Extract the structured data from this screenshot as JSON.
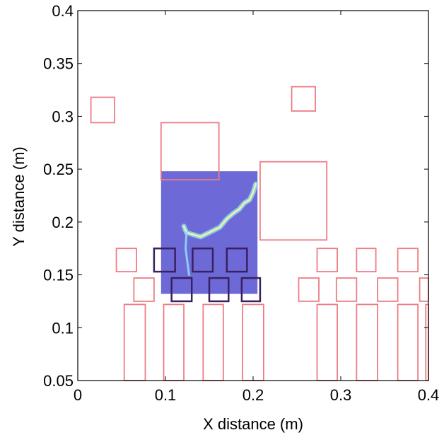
{
  "chart_data": {
    "type": "scatter",
    "title": "",
    "xlabel": "X distance (m)",
    "ylabel": "Y distance (m)",
    "xlim": [
      0,
      0.4
    ],
    "ylim": [
      0.05,
      0.4
    ],
    "xticks": [
      0,
      0.1,
      0.2,
      0.3,
      0.4
    ],
    "yticks": [
      0.05,
      0.1,
      0.15,
      0.2,
      0.25,
      0.3,
      0.35,
      0.4
    ],
    "xtick_labels": [
      "0",
      "0.1",
      "0.2",
      "0.3",
      "0.4"
    ],
    "ytick_labels": [
      "0.05",
      "0.1",
      "0.15",
      "0.2",
      "0.25",
      "0.3",
      "0.35",
      "0.4"
    ],
    "grid": false,
    "colors": {
      "outline": "#ee7c84",
      "dark_outline": "#3a2060",
      "field_fill": "#6d6ad8",
      "crack_core": "#f2f5a0",
      "crack_glow": "#8fd8f0"
    },
    "field_region": {
      "x": [
        0.095,
        0.205
      ],
      "y": [
        0.132,
        0.248
      ]
    },
    "crack_path": [
      [
        0.121,
        0.196
      ],
      [
        0.124,
        0.19
      ],
      [
        0.14,
        0.186
      ],
      [
        0.15,
        0.19
      ],
      [
        0.162,
        0.195
      ],
      [
        0.17,
        0.203
      ],
      [
        0.177,
        0.208
      ],
      [
        0.184,
        0.212
      ],
      [
        0.19,
        0.218
      ],
      [
        0.196,
        0.221
      ],
      [
        0.2,
        0.228
      ],
      [
        0.203,
        0.236
      ]
    ],
    "crack_branch": [
      [
        0.124,
        0.19
      ],
      [
        0.123,
        0.175
      ],
      [
        0.125,
        0.162
      ],
      [
        0.127,
        0.15
      ]
    ],
    "rectangles": [
      {
        "x": [
          0.015,
          0.042
        ],
        "y": [
          0.294,
          0.318
        ],
        "style": "outline"
      },
      {
        "x": [
          0.244,
          0.271
        ],
        "y": [
          0.305,
          0.328
        ],
        "style": "outline"
      },
      {
        "x": [
          0.095,
          0.161
        ],
        "y": [
          0.24,
          0.294
        ],
        "style": "outline"
      },
      {
        "x": [
          0.208,
          0.284
        ],
        "y": [
          0.183,
          0.257
        ],
        "style": "outline"
      },
      {
        "x": [
          0.044,
          0.067
        ],
        "y": [
          0.153,
          0.175
        ],
        "style": "outline"
      },
      {
        "x": [
          0.064,
          0.087
        ],
        "y": [
          0.125,
          0.147
        ],
        "style": "outline"
      },
      {
        "x": [
          0.087,
          0.111
        ],
        "y": [
          0.153,
          0.175
        ],
        "style": "dark"
      },
      {
        "x": [
          0.107,
          0.13
        ],
        "y": [
          0.125,
          0.147
        ],
        "style": "dark"
      },
      {
        "x": [
          0.131,
          0.154
        ],
        "y": [
          0.153,
          0.175
        ],
        "style": "dark"
      },
      {
        "x": [
          0.15,
          0.172
        ],
        "y": [
          0.125,
          0.147
        ],
        "style": "dark"
      },
      {
        "x": [
          0.17,
          0.193
        ],
        "y": [
          0.153,
          0.175
        ],
        "style": "dark"
      },
      {
        "x": [
          0.187,
          0.208
        ],
        "y": [
          0.125,
          0.147
        ],
        "style": "dark"
      },
      {
        "x": [
          0.273,
          0.296
        ],
        "y": [
          0.153,
          0.175
        ],
        "style": "outline"
      },
      {
        "x": [
          0.252,
          0.275
        ],
        "y": [
          0.125,
          0.147
        ],
        "style": "outline"
      },
      {
        "x": [
          0.318,
          0.34
        ],
        "y": [
          0.153,
          0.175
        ],
        "style": "outline"
      },
      {
        "x": [
          0.295,
          0.318
        ],
        "y": [
          0.125,
          0.147
        ],
        "style": "outline"
      },
      {
        "x": [
          0.365,
          0.388
        ],
        "y": [
          0.153,
          0.175
        ],
        "style": "outline"
      },
      {
        "x": [
          0.342,
          0.365
        ],
        "y": [
          0.125,
          0.147
        ],
        "style": "outline"
      },
      {
        "x": [
          0.39,
          0.4
        ],
        "y": [
          0.125,
          0.147
        ],
        "style": "outline"
      },
      {
        "x": [
          0.053,
          0.077
        ],
        "y": [
          0.05,
          0.122
        ],
        "style": "outline"
      },
      {
        "x": [
          0.098,
          0.121
        ],
        "y": [
          0.05,
          0.122
        ],
        "style": "outline"
      },
      {
        "x": [
          0.143,
          0.166
        ],
        "y": [
          0.05,
          0.122
        ],
        "style": "outline"
      },
      {
        "x": [
          0.188,
          0.212
        ],
        "y": [
          0.05,
          0.122
        ],
        "style": "outline"
      },
      {
        "x": [
          0.273,
          0.296
        ],
        "y": [
          0.05,
          0.122
        ],
        "style": "outline"
      },
      {
        "x": [
          0.318,
          0.342
        ],
        "y": [
          0.05,
          0.122
        ],
        "style": "outline"
      },
      {
        "x": [
          0.365,
          0.388
        ],
        "y": [
          0.05,
          0.122
        ],
        "style": "outline"
      },
      {
        "x": [
          0.397,
          0.4
        ],
        "y": [
          0.05,
          0.122
        ],
        "style": "outline"
      }
    ]
  }
}
